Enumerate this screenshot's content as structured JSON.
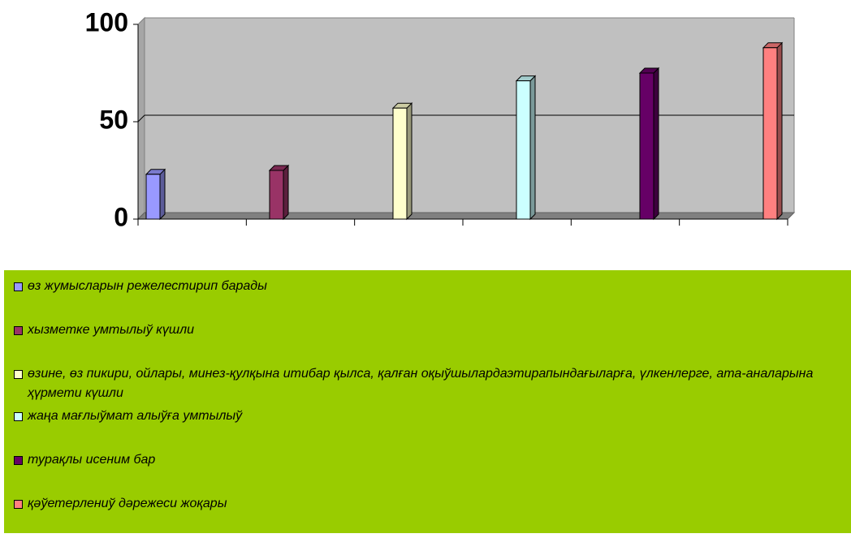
{
  "chart_data": {
    "type": "bar",
    "series": [
      {
        "name": "өз жумысларын режелестирип барады",
        "color": "#9999ff",
        "values": [
          23
        ]
      },
      {
        "name": "хызметке умтылыў күшли",
        "color": "#993366",
        "values": [
          25
        ]
      },
      {
        "name": "өзине, өз пикири, ойлары, минез-қулқына итибар қылса, қалған оқыўшылардаэтирапындағыларға, үлкенлерге, ата-аналарына ҳүрмети күшли",
        "color": "#ffffcc",
        "values": [
          57
        ]
      },
      {
        "name": "жаңа мағлыўмат алыўға умтылыў",
        "color": "#ccffff",
        "values": [
          71
        ]
      },
      {
        "name": "турақлы исеним бар",
        "color": "#660066",
        "values": [
          75
        ]
      },
      {
        "name": "қәўетерлениў дәрежеси жоқары",
        "color": "#ff8080",
        "values": [
          88
        ]
      }
    ],
    "ylim": [
      0,
      100
    ],
    "yticks": [
      0,
      50,
      100
    ],
    "grid": true
  }
}
